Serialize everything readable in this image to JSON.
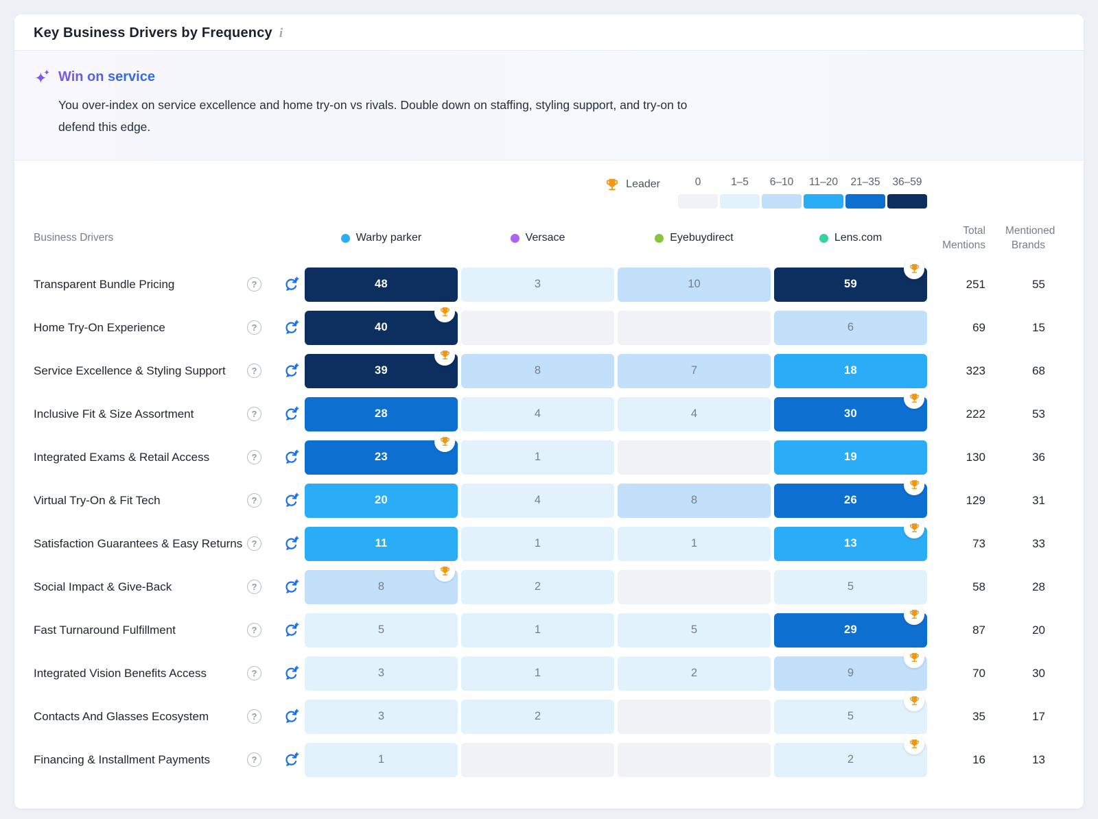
{
  "card": {
    "title": "Key Business Drivers by Frequency",
    "info_icon": "i",
    "insight": {
      "headline": "Win on service",
      "body": "You over-index on service excellence and home try-on vs rivals. Double down on staffing, styling support, and try-on to defend this edge."
    }
  },
  "legend": {
    "leader_label": "Leader",
    "bins": [
      {
        "label": "0",
        "color": "#f0f2f6"
      },
      {
        "label": "1–5",
        "color": "#e2f2fd"
      },
      {
        "label": "6–10",
        "color": "#c3e0fa"
      },
      {
        "label": "11–20",
        "color": "#2aacf7"
      },
      {
        "label": "21–35",
        "color": "#0d6fd0"
      },
      {
        "label": "36–59",
        "color": "#0d2f5f"
      }
    ]
  },
  "table": {
    "first_col_header": "Business Drivers",
    "total_header": [
      "Total",
      "Mentions"
    ],
    "brands_header": [
      "Mentioned",
      "Brands"
    ],
    "brands": [
      {
        "name": "Warby parker",
        "dot_color": "#2aacf7"
      },
      {
        "name": "Versace",
        "dot_color": "#a964f7"
      },
      {
        "name": "Eyebuydirect",
        "dot_color": "#8ac43f"
      },
      {
        "name": "Lens.com",
        "dot_color": "#34d39b"
      }
    ],
    "rows": [
      {
        "driver": "Transparent Bundle Pricing",
        "values": [
          48,
          3,
          10,
          59
        ],
        "leader": 3,
        "total_mentions": 251,
        "mentioned_brands": 55
      },
      {
        "driver": "Home Try-On Experience",
        "values": [
          40,
          0,
          0,
          6
        ],
        "leader": 0,
        "total_mentions": 69,
        "mentioned_brands": 15
      },
      {
        "driver": "Service Excellence & Styling Support",
        "values": [
          39,
          8,
          7,
          18
        ],
        "leader": 0,
        "total_mentions": 323,
        "mentioned_brands": 68
      },
      {
        "driver": "Inclusive Fit & Size Assortment",
        "values": [
          28,
          4,
          4,
          30
        ],
        "leader": 3,
        "total_mentions": 222,
        "mentioned_brands": 53
      },
      {
        "driver": "Integrated Exams & Retail Access",
        "values": [
          23,
          1,
          0,
          19
        ],
        "leader": 0,
        "total_mentions": 130,
        "mentioned_brands": 36
      },
      {
        "driver": "Virtual Try-On & Fit Tech",
        "values": [
          20,
          4,
          8,
          26
        ],
        "leader": 3,
        "total_mentions": 129,
        "mentioned_brands": 31
      },
      {
        "driver": "Satisfaction Guarantees & Easy Returns",
        "values": [
          11,
          1,
          1,
          13
        ],
        "leader": 3,
        "total_mentions": 73,
        "mentioned_brands": 33
      },
      {
        "driver": "Social Impact & Give-Back",
        "values": [
          8,
          2,
          0,
          5
        ],
        "leader": 0,
        "total_mentions": 58,
        "mentioned_brands": 28
      },
      {
        "driver": "Fast Turnaround Fulfillment",
        "values": [
          5,
          1,
          5,
          29
        ],
        "leader": 3,
        "total_mentions": 87,
        "mentioned_brands": 20
      },
      {
        "driver": "Integrated Vision Benefits Access",
        "values": [
          3,
          1,
          2,
          9
        ],
        "leader": 3,
        "total_mentions": 70,
        "mentioned_brands": 30
      },
      {
        "driver": "Contacts And Glasses Ecosystem",
        "values": [
          3,
          2,
          0,
          5
        ],
        "leader": 3,
        "total_mentions": 35,
        "mentioned_brands": 17
      },
      {
        "driver": "Financing & Installment Payments",
        "values": [
          1,
          0,
          0,
          2
        ],
        "leader": 3,
        "total_mentions": 16,
        "mentioned_brands": 13
      }
    ]
  },
  "chart_data": {
    "type": "heatmap",
    "title": "Key Business Drivers by Frequency",
    "x": [
      "Warby parker",
      "Versace",
      "Eyebuydirect",
      "Lens.com"
    ],
    "y": [
      "Transparent Bundle Pricing",
      "Home Try-On Experience",
      "Service Excellence & Styling Support",
      "Inclusive Fit & Size Assortment",
      "Integrated Exams & Retail Access",
      "Virtual Try-On & Fit Tech",
      "Satisfaction Guarantees & Easy Returns",
      "Social Impact & Give-Back",
      "Fast Turnaround Fulfillment",
      "Integrated Vision Benefits Access",
      "Contacts And Glasses Ecosystem",
      "Financing & Installment Payments"
    ],
    "values": [
      [
        48,
        3,
        10,
        59
      ],
      [
        40,
        0,
        0,
        6
      ],
      [
        39,
        8,
        7,
        18
      ],
      [
        28,
        4,
        4,
        30
      ],
      [
        23,
        1,
        0,
        19
      ],
      [
        20,
        4,
        8,
        26
      ],
      [
        11,
        1,
        1,
        13
      ],
      [
        8,
        2,
        0,
        5
      ],
      [
        5,
        1,
        5,
        29
      ],
      [
        3,
        1,
        2,
        9
      ],
      [
        3,
        2,
        0,
        5
      ],
      [
        1,
        0,
        0,
        2
      ]
    ],
    "total_mentions": [
      251,
      69,
      323,
      222,
      130,
      129,
      73,
      58,
      87,
      70,
      35,
      16
    ],
    "mentioned_brands": [
      55,
      15,
      68,
      53,
      36,
      31,
      33,
      28,
      20,
      30,
      17,
      13
    ],
    "leaders": [
      "Lens.com",
      "Warby parker",
      "Warby parker",
      "Lens.com",
      "Warby parker",
      "Lens.com",
      "Lens.com",
      "Warby parker",
      "Lens.com",
      "Lens.com",
      "Lens.com",
      "Lens.com"
    ],
    "color_bins": [
      {
        "range": "0",
        "color": "#f0f2f6"
      },
      {
        "range": "1–5",
        "color": "#e2f2fd"
      },
      {
        "range": "6–10",
        "color": "#c3e0fa"
      },
      {
        "range": "11–20",
        "color": "#2aacf7"
      },
      {
        "range": "21–35",
        "color": "#0d6fd0"
      },
      {
        "range": "36–59",
        "color": "#0d2f5f"
      }
    ],
    "legend_position": "top-right"
  }
}
